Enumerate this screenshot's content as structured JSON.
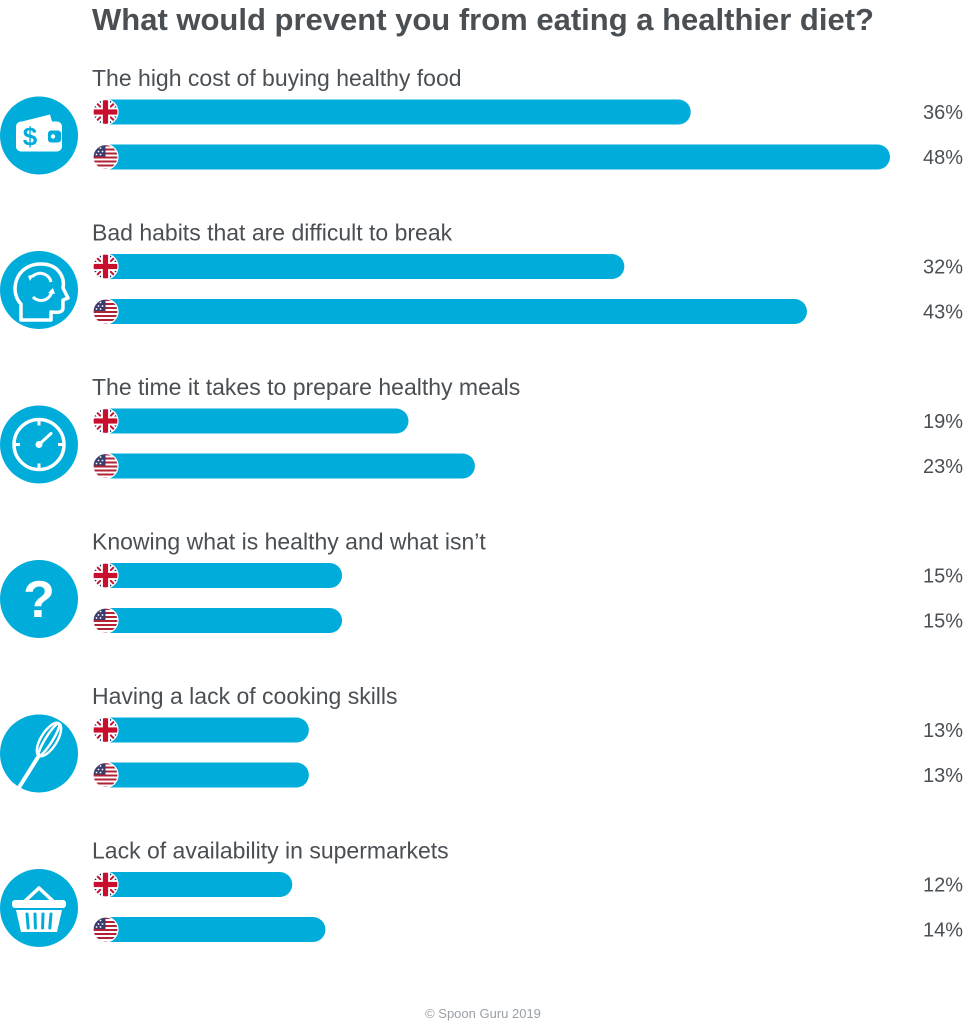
{
  "colors": {
    "bar": "#00acd9",
    "icon_bg": "#00acd9",
    "text": "#4a4f54",
    "footer": "#9aa0a6"
  },
  "chart_data": {
    "type": "bar",
    "orientation": "horizontal",
    "title": "What would prevent you from eating a healthier diet?",
    "xlim": [
      0,
      48
    ],
    "grid": false,
    "categories": [
      {
        "label": "The high cost of buying healthy food",
        "icon": "wallet-icon"
      },
      {
        "label": "Bad habits that are difficult to break",
        "icon": "head-icon"
      },
      {
        "label": "The time it takes to prepare healthy meals",
        "icon": "clock-icon"
      },
      {
        "label": "Knowing what is healthy and what isn’t",
        "icon": "question-icon"
      },
      {
        "label": "Having a lack of cooking skills",
        "icon": "whisk-icon"
      },
      {
        "label": "Lack of availability in supermarkets",
        "icon": "basket-icon"
      }
    ],
    "series": [
      {
        "icon": "uk-flag-icon",
        "values": [
          36,
          32,
          19,
          15,
          13,
          12
        ],
        "labels": [
          "36%",
          "32%",
          "19%",
          "15%",
          "13%",
          "12%"
        ]
      },
      {
        "icon": "us-flag-icon",
        "values": [
          48,
          43,
          23,
          15,
          13,
          14
        ],
        "labels": [
          "48%",
          "43%",
          "23%",
          "15%",
          "13%",
          "14%"
        ]
      }
    ]
  },
  "footer": "© Spoon Guru 2019"
}
